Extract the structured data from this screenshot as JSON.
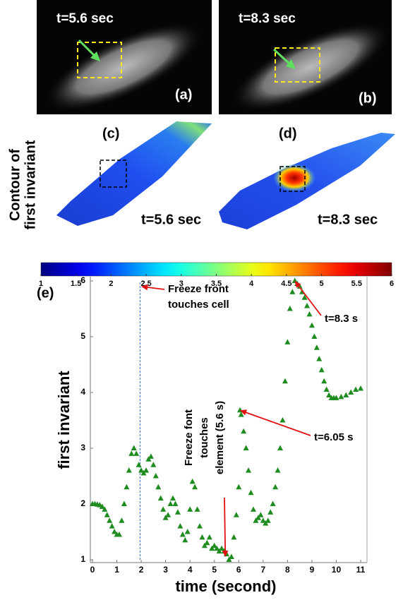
{
  "panels": [
    {
      "time": "t=5.6 sec",
      "label": "(a)"
    },
    {
      "time": "t=8.3 sec",
      "label": "(b)"
    }
  ],
  "contour": {
    "ylabel": [
      "Contour of",
      "first invariant"
    ],
    "panels": [
      {
        "label": "(c)",
        "time": "t=5.6 sec"
      },
      {
        "label": "(d)",
        "time": "t=8.3 sec"
      }
    ]
  },
  "chart_data": [
    {
      "type": "colorbar",
      "colormap": "jet",
      "lim": [
        1,
        6
      ],
      "ticks": [
        1,
        1.5,
        2,
        2.5,
        3,
        3.5,
        4,
        4.5,
        5,
        5.5,
        6
      ]
    },
    {
      "type": "scatter",
      "title": "(e)",
      "xlabel": "time (second)",
      "ylabel": "first invariant",
      "xlim": [
        0,
        11
      ],
      "ylim": [
        1,
        6
      ],
      "xticks": [
        0,
        1,
        2,
        3,
        4,
        5,
        6,
        7,
        8,
        9,
        10,
        11
      ],
      "yticks": [
        1,
        2,
        3,
        4,
        5,
        6
      ],
      "vline": 1.95,
      "x": [
        0,
        0.1,
        0.2,
        0.3,
        0.4,
        0.5,
        0.6,
        0.7,
        0.8,
        0.9,
        1.0,
        1.1,
        1.2,
        1.3,
        1.4,
        1.5,
        1.6,
        1.7,
        1.8,
        1.9,
        2.0,
        2.1,
        2.2,
        2.3,
        2.4,
        2.5,
        2.6,
        2.7,
        2.8,
        2.9,
        3.0,
        3.1,
        3.2,
        3.3,
        3.4,
        3.5,
        3.6,
        3.7,
        3.8,
        3.9,
        4.0,
        4.1,
        4.2,
        4.3,
        4.4,
        4.5,
        4.6,
        4.7,
        4.8,
        4.9,
        5.0,
        5.1,
        5.2,
        5.3,
        5.4,
        5.5,
        5.6,
        5.7,
        5.8,
        5.9,
        6.0,
        6.05,
        6.1,
        6.2,
        6.3,
        6.4,
        6.5,
        6.6,
        6.7,
        6.8,
        6.9,
        7.0,
        7.1,
        7.2,
        7.3,
        7.4,
        7.5,
        7.6,
        7.7,
        7.8,
        7.9,
        8.0,
        8.1,
        8.2,
        8.3,
        8.4,
        8.5,
        8.6,
        8.7,
        8.8,
        8.9,
        9.0,
        9.1,
        9.2,
        9.3,
        9.4,
        9.5,
        9.6,
        9.7,
        9.8,
        9.9,
        10.0,
        10.2,
        10.4,
        10.6,
        10.8,
        11.0
      ],
      "series": [
        {
          "name": "first invariant",
          "color": "#1e8c1e",
          "values": [
            2.0,
            2.0,
            1.99,
            1.98,
            1.95,
            1.9,
            1.8,
            1.7,
            1.6,
            1.5,
            1.45,
            1.45,
            1.7,
            2.0,
            2.3,
            2.6,
            2.9,
            3.0,
            2.9,
            2.7,
            2.6,
            2.55,
            2.6,
            2.8,
            2.85,
            2.7,
            2.5,
            2.3,
            2.1,
            1.9,
            1.75,
            1.8,
            2.0,
            2.1,
            2.0,
            1.85,
            1.6,
            1.45,
            1.35,
            1.5,
            1.9,
            2.4,
            2.3,
            1.9,
            1.6,
            1.4,
            1.25,
            1.3,
            1.4,
            1.2,
            1.25,
            1.2,
            1.15,
            1.2,
            1.15,
            1.1,
            1.0,
            1.05,
            1.4,
            1.8,
            2.3,
            3.68,
            3.6,
            3.3,
            3.0,
            2.6,
            2.2,
            1.9,
            1.7,
            1.75,
            1.8,
            1.7,
            1.65,
            1.7,
            1.85,
            2.0,
            2.3,
            2.6,
            3.0,
            3.5,
            4.2,
            4.9,
            5.5,
            5.8,
            6.0,
            5.95,
            5.9,
            5.8,
            5.7,
            5.55,
            5.4,
            5.2,
            5.0,
            4.8,
            4.6,
            4.4,
            4.2,
            4.05,
            3.95,
            3.9,
            3.9,
            3.9,
            3.92,
            3.95,
            4.0,
            4.05,
            4.07
          ]
        }
      ],
      "annotations": [
        {
          "lines": [
            "Freeze front",
            "touches cell"
          ],
          "at": [
            2.0,
            5.9
          ]
        },
        {
          "lines": [
            "t=8.3 s"
          ],
          "at": [
            8.3,
            6.0
          ]
        },
        {
          "lines": [
            "t=6.05 s"
          ],
          "at": [
            6.05,
            3.68
          ]
        },
        {
          "lines": [
            "Freeze font",
            "touches",
            "element (5.6 s)"
          ],
          "at": [
            5.45,
            1.05
          ]
        }
      ]
    }
  ]
}
